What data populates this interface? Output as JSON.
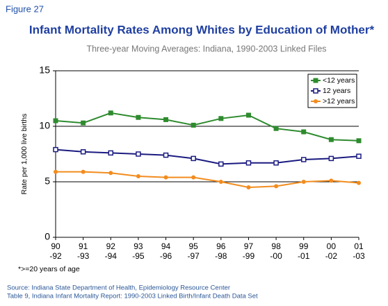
{
  "figure_label": "Figure 27",
  "chart_data": {
    "type": "line",
    "title": "Infant Mortality Rates Among Whites by Education of Mother*",
    "subtitle": "Three-year Moving Averages: Indiana, 1990-2003 Linked Files",
    "y_label": "Rate per 1,000 live births",
    "categories": [
      "90\n-92",
      "91\n-93",
      "92\n-94",
      "93\n-95",
      "94\n-96",
      "95\n-97",
      "96\n-98",
      "97\n-99",
      "98\n-00",
      "99\n-01",
      "00\n-02",
      "01\n-03"
    ],
    "series": [
      {
        "name": "<12 years",
        "color": "#2e8b2e",
        "marker": "square",
        "values": [
          10.5,
          10.3,
          11.2,
          10.8,
          10.6,
          10.1,
          10.7,
          11.0,
          9.8,
          9.5,
          8.8,
          8.7
        ]
      },
      {
        "name": "12 years",
        "color": "#1a1a80",
        "marker": "open-square",
        "values": [
          7.9,
          7.7,
          7.6,
          7.5,
          7.4,
          7.1,
          6.6,
          6.7,
          6.7,
          7.0,
          7.1,
          7.3
        ]
      },
      {
        "name": ">12 years",
        "color": "#f28c1e",
        "marker": "circle",
        "values": [
          5.9,
          5.9,
          5.8,
          5.5,
          5.4,
          5.4,
          5.0,
          4.5,
          4.6,
          5.0,
          5.1,
          4.9
        ]
      }
    ],
    "ylim": [
      0,
      15
    ],
    "yticks": [
      0,
      5,
      10,
      15
    ],
    "grid": true,
    "legend": "top-right"
  },
  "footnote": "*>=20 years of age",
  "source": [
    "Source: Indiana State Department of Health, Epidemiology Resource Center",
    "Table 9, Indiana Infant Mortality Report: 1990-2003 Linked Birth/Infant Death Data Set"
  ]
}
